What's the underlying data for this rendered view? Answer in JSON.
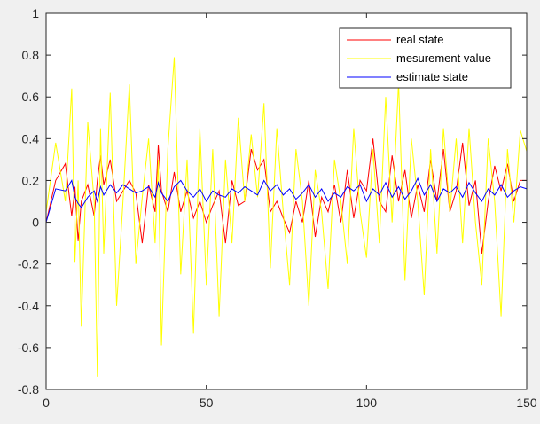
{
  "chart_data": {
    "type": "line",
    "title": "",
    "xlabel": "",
    "ylabel": "",
    "xlim": [
      0,
      150
    ],
    "ylim": [
      -0.8,
      1
    ],
    "xticks": [
      "0",
      "50",
      "100",
      "150"
    ],
    "yticks": [
      "-0.8",
      "-0.6",
      "-0.4",
      "-0.2",
      "0",
      "0.2",
      "0.4",
      "0.6",
      "0.8",
      "1"
    ],
    "grid": false,
    "legend_position": "top-right",
    "x": [
      0,
      3,
      6,
      8,
      9,
      10,
      11,
      13,
      15,
      16,
      17,
      18,
      20,
      22,
      24,
      26,
      28,
      30,
      32,
      34,
      35,
      36,
      38,
      40,
      42,
      44,
      46,
      48,
      50,
      52,
      54,
      56,
      58,
      60,
      62,
      64,
      66,
      68,
      70,
      72,
      74,
      76,
      78,
      80,
      82,
      84,
      86,
      88,
      90,
      92,
      94,
      96,
      98,
      100,
      102,
      104,
      106,
      108,
      110,
      112,
      114,
      116,
      118,
      120,
      122,
      124,
      126,
      128,
      130,
      132,
      134,
      136,
      138,
      140,
      142,
      144,
      146,
      148,
      150
    ],
    "series": [
      {
        "name": "real state",
        "color": "#ff0000",
        "values": [
          0.0,
          0.2,
          0.28,
          0.03,
          0.17,
          -0.09,
          0.1,
          0.18,
          0.03,
          0.2,
          0.32,
          0.18,
          0.3,
          0.1,
          0.15,
          0.2,
          0.14,
          -0.1,
          0.18,
          0.05,
          0.37,
          0.15,
          0.05,
          0.24,
          0.05,
          0.15,
          0.02,
          0.1,
          0.0,
          0.08,
          0.15,
          -0.1,
          0.2,
          0.08,
          0.1,
          0.35,
          0.25,
          0.3,
          0.05,
          0.1,
          0.02,
          -0.05,
          0.1,
          0.0,
          0.2,
          -0.07,
          0.12,
          0.05,
          0.18,
          0.0,
          0.25,
          0.02,
          0.2,
          0.15,
          0.4,
          0.1,
          0.05,
          0.32,
          0.1,
          0.25,
          0.02,
          0.18,
          0.05,
          0.3,
          0.1,
          0.35,
          0.05,
          0.15,
          0.38,
          0.08,
          0.2,
          -0.15,
          0.1,
          0.27,
          0.15,
          0.28,
          0.1,
          0.2,
          0.2
        ]
      },
      {
        "name": "mesurement value",
        "color": "#ffff00",
        "values": [
          0.05,
          0.38,
          0.1,
          0.64,
          -0.19,
          0.2,
          -0.5,
          0.48,
          0.1,
          -0.74,
          0.45,
          -0.15,
          0.62,
          -0.4,
          0.1,
          0.66,
          -0.2,
          0.12,
          0.4,
          -0.1,
          0.3,
          -0.59,
          0.35,
          0.79,
          -0.25,
          0.3,
          -0.53,
          0.45,
          -0.3,
          0.35,
          -0.45,
          0.3,
          -0.1,
          0.5,
          0.1,
          0.42,
          0.12,
          0.57,
          -0.22,
          0.45,
          0.05,
          -0.3,
          0.35,
          0.1,
          -0.4,
          0.25,
          0.05,
          -0.32,
          0.3,
          0.1,
          -0.2,
          0.45,
          0.05,
          -0.17,
          0.35,
          -0.1,
          0.6,
          0.0,
          0.67,
          -0.28,
          0.4,
          0.1,
          -0.35,
          0.35,
          -0.15,
          0.45,
          0.05,
          0.4,
          -0.1,
          0.45,
          0.0,
          -0.3,
          0.4,
          0.1,
          -0.45,
          0.35,
          0.0,
          0.44,
          0.34
        ]
      },
      {
        "name": "estimate state",
        "color": "#0000ff",
        "values": [
          0.0,
          0.16,
          0.15,
          0.2,
          0.12,
          0.09,
          0.07,
          0.12,
          0.15,
          0.1,
          0.17,
          0.13,
          0.18,
          0.14,
          0.18,
          0.16,
          0.14,
          0.15,
          0.17,
          0.12,
          0.19,
          0.14,
          0.1,
          0.17,
          0.2,
          0.15,
          0.12,
          0.16,
          0.1,
          0.15,
          0.13,
          0.12,
          0.16,
          0.14,
          0.17,
          0.15,
          0.13,
          0.2,
          0.15,
          0.18,
          0.13,
          0.16,
          0.11,
          0.14,
          0.18,
          0.12,
          0.16,
          0.1,
          0.14,
          0.12,
          0.17,
          0.15,
          0.18,
          0.1,
          0.16,
          0.13,
          0.19,
          0.12,
          0.17,
          0.11,
          0.15,
          0.21,
          0.13,
          0.18,
          0.1,
          0.16,
          0.14,
          0.17,
          0.12,
          0.19,
          0.14,
          0.1,
          0.16,
          0.13,
          0.18,
          0.12,
          0.15,
          0.17,
          0.16
        ]
      }
    ]
  }
}
